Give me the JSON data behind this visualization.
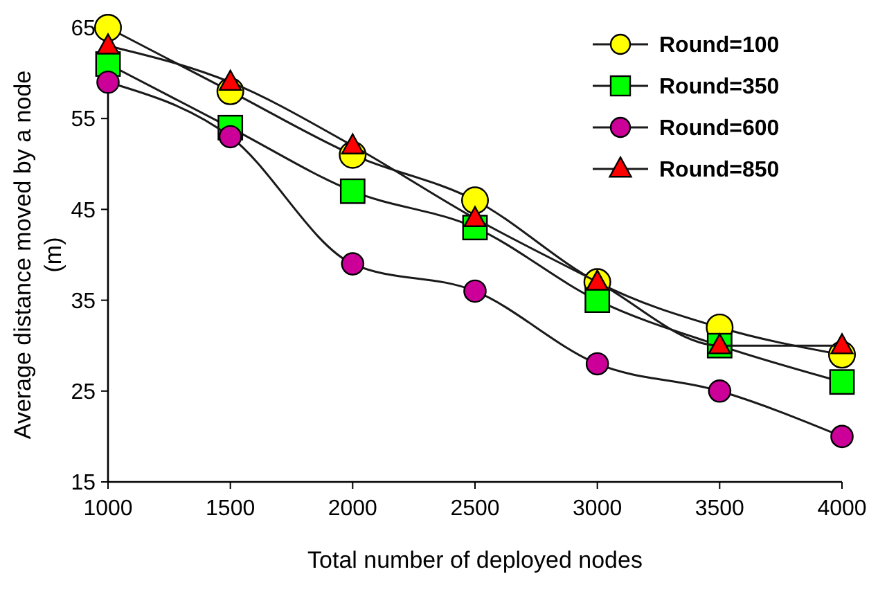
{
  "chart_data": {
    "type": "line",
    "xlabel": "Total number of deployed nodes",
    "ylabel": "Average distance moved by a node (m)",
    "x": [
      1000,
      1500,
      2000,
      2500,
      3000,
      3500,
      4000
    ],
    "xlim": [
      1000,
      4000
    ],
    "xticks": [
      1000,
      1500,
      2000,
      2500,
      3000,
      3500,
      4000
    ],
    "ylim": [
      15,
      65
    ],
    "yticks": [
      15,
      25,
      35,
      45,
      55,
      65
    ],
    "grid": false,
    "legend": "top right",
    "line_style": "solid",
    "series": [
      {
        "name": "Round=100",
        "color": "#ffff00",
        "marker": "circle",
        "values": [
          65,
          58,
          51,
          46,
          37,
          32,
          29
        ]
      },
      {
        "name": "Round=350",
        "color": "#00ff00",
        "marker": "square",
        "values": [
          61,
          54,
          47,
          43,
          35,
          30,
          26
        ]
      },
      {
        "name": "Round=600",
        "color": "#cc0099",
        "marker": "circle",
        "values": [
          59,
          53,
          39,
          36,
          28,
          25,
          20
        ]
      },
      {
        "name": "Round=850",
        "color": "#ff0000",
        "marker": "triangle",
        "values": [
          63,
          59,
          52,
          44,
          37,
          30,
          30
        ]
      }
    ]
  }
}
